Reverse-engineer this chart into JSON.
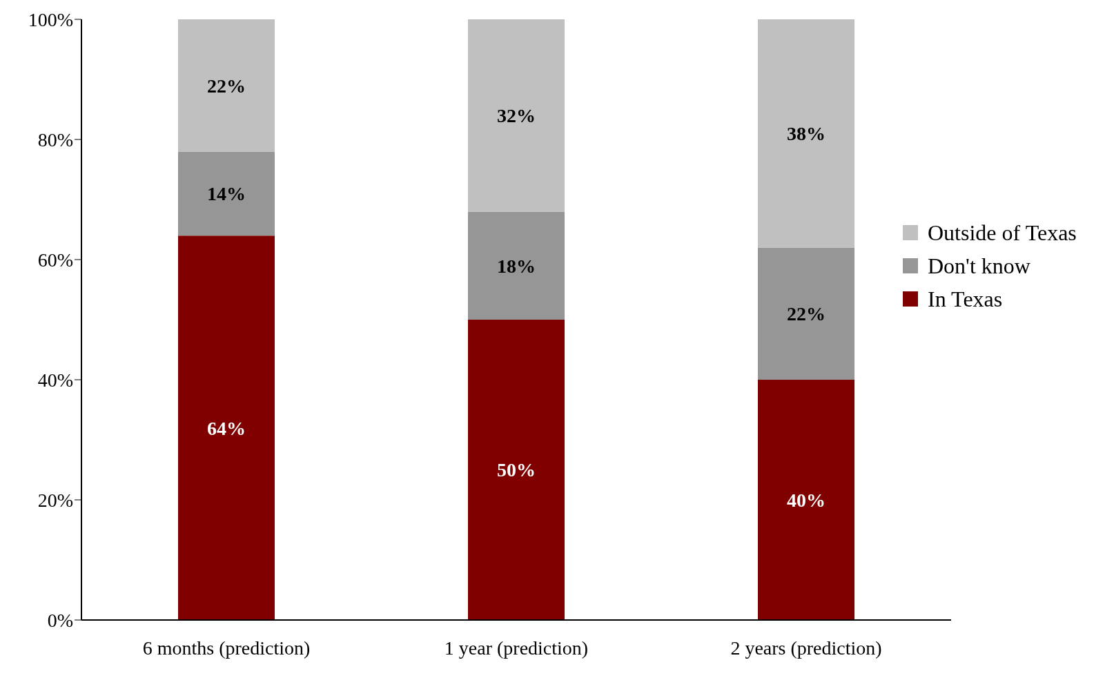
{
  "chart_data": {
    "type": "bar",
    "stacked": true,
    "categories": [
      "6 months (prediction)",
      "1 year (prediction)",
      "2 years (prediction)"
    ],
    "series": [
      {
        "name": "In Texas",
        "color": "#800000",
        "values": [
          64,
          50,
          40
        ],
        "value_labels": [
          "64%",
          "50%",
          "40%"
        ]
      },
      {
        "name": "Don't know",
        "color": "#969696",
        "values": [
          14,
          18,
          22
        ],
        "value_labels": [
          "14%",
          "18%",
          "22%"
        ]
      },
      {
        "name": "Outside of Texas",
        "color": "#c0c0c0",
        "values": [
          22,
          32,
          38
        ],
        "value_labels": [
          "22%",
          "32%",
          "38%"
        ]
      }
    ],
    "ylim": [
      0,
      100
    ],
    "yticks": [
      {
        "value": 0,
        "label": "0%"
      },
      {
        "value": 20,
        "label": "20%"
      },
      {
        "value": 40,
        "label": "40%"
      },
      {
        "value": 60,
        "label": "60%"
      },
      {
        "value": 80,
        "label": "80%"
      },
      {
        "value": 100,
        "label": "100%"
      }
    ],
    "grid": false,
    "legend": "right"
  }
}
